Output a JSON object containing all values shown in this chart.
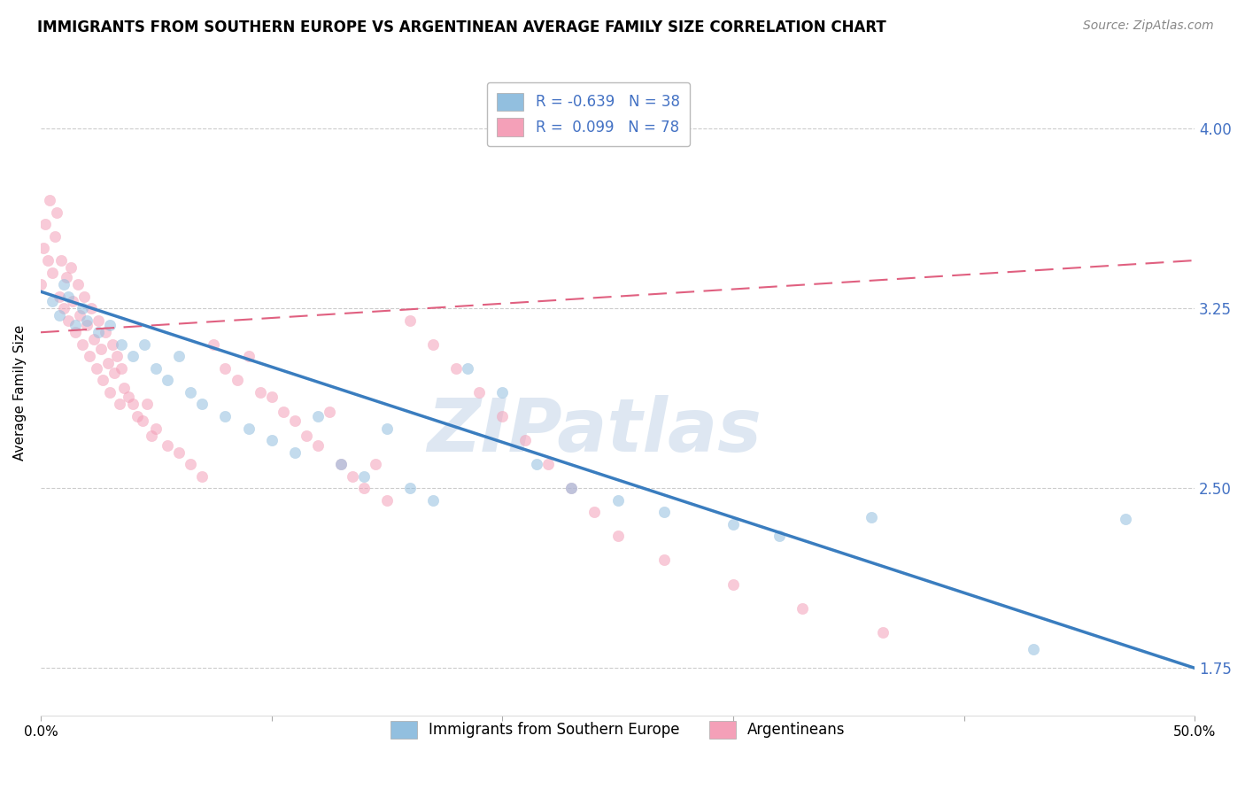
{
  "title": "IMMIGRANTS FROM SOUTHERN EUROPE VS ARGENTINEAN AVERAGE FAMILY SIZE CORRELATION CHART",
  "source": "Source: ZipAtlas.com",
  "ylabel": "Average Family Size",
  "xlim": [
    0.0,
    0.5
  ],
  "ylim": [
    1.55,
    4.25
  ],
  "yticks": [
    1.75,
    2.5,
    3.25,
    4.0
  ],
  "xticks": [
    0.0,
    0.1,
    0.2,
    0.3,
    0.4,
    0.5
  ],
  "xtick_labels": [
    "0.0%",
    "",
    "",
    "",
    "",
    "50.0%"
  ],
  "legend_line1": "R = -0.639   N = 38",
  "legend_line2": "R =  0.099   N = 78",
  "legend_labels_bottom": [
    "Immigrants from Southern Europe",
    "Argentineans"
  ],
  "blue_scatter_x": [
    0.005,
    0.008,
    0.01,
    0.012,
    0.015,
    0.018,
    0.02,
    0.025,
    0.03,
    0.035,
    0.04,
    0.045,
    0.05,
    0.055,
    0.06,
    0.065,
    0.07,
    0.08,
    0.09,
    0.1,
    0.11,
    0.12,
    0.13,
    0.14,
    0.15,
    0.16,
    0.17,
    0.185,
    0.2,
    0.215,
    0.23,
    0.25,
    0.27,
    0.3,
    0.32,
    0.36,
    0.43,
    0.47
  ],
  "blue_scatter_y": [
    3.28,
    3.22,
    3.35,
    3.3,
    3.18,
    3.25,
    3.2,
    3.15,
    3.18,
    3.1,
    3.05,
    3.1,
    3.0,
    2.95,
    3.05,
    2.9,
    2.85,
    2.8,
    2.75,
    2.7,
    2.65,
    2.8,
    2.6,
    2.55,
    2.75,
    2.5,
    2.45,
    3.0,
    2.9,
    2.6,
    2.5,
    2.45,
    2.4,
    2.35,
    2.3,
    2.38,
    1.83,
    2.37
  ],
  "pink_scatter_x": [
    0.0,
    0.001,
    0.002,
    0.003,
    0.004,
    0.005,
    0.006,
    0.007,
    0.008,
    0.009,
    0.01,
    0.011,
    0.012,
    0.013,
    0.014,
    0.015,
    0.016,
    0.017,
    0.018,
    0.019,
    0.02,
    0.021,
    0.022,
    0.023,
    0.024,
    0.025,
    0.026,
    0.027,
    0.028,
    0.029,
    0.03,
    0.031,
    0.032,
    0.033,
    0.034,
    0.035,
    0.036,
    0.038,
    0.04,
    0.042,
    0.044,
    0.046,
    0.048,
    0.05,
    0.055,
    0.06,
    0.065,
    0.07,
    0.075,
    0.08,
    0.085,
    0.09,
    0.095,
    0.1,
    0.105,
    0.11,
    0.115,
    0.12,
    0.125,
    0.13,
    0.135,
    0.14,
    0.145,
    0.15,
    0.16,
    0.17,
    0.18,
    0.19,
    0.2,
    0.21,
    0.22,
    0.23,
    0.24,
    0.25,
    0.27,
    0.3,
    0.33,
    0.365
  ],
  "pink_scatter_y": [
    3.35,
    3.5,
    3.6,
    3.45,
    3.7,
    3.4,
    3.55,
    3.65,
    3.3,
    3.45,
    3.25,
    3.38,
    3.2,
    3.42,
    3.28,
    3.15,
    3.35,
    3.22,
    3.1,
    3.3,
    3.18,
    3.05,
    3.25,
    3.12,
    3.0,
    3.2,
    3.08,
    2.95,
    3.15,
    3.02,
    2.9,
    3.1,
    2.98,
    3.05,
    2.85,
    3.0,
    2.92,
    2.88,
    2.85,
    2.8,
    2.78,
    2.85,
    2.72,
    2.75,
    2.68,
    2.65,
    2.6,
    2.55,
    3.1,
    3.0,
    2.95,
    3.05,
    2.9,
    2.88,
    2.82,
    2.78,
    2.72,
    2.68,
    2.82,
    2.6,
    2.55,
    2.5,
    2.6,
    2.45,
    3.2,
    3.1,
    3.0,
    2.9,
    2.8,
    2.7,
    2.6,
    2.5,
    2.4,
    2.3,
    2.2,
    2.1,
    2.0,
    1.9
  ],
  "blue_line_x": [
    0.0,
    0.5
  ],
  "blue_line_y": [
    3.32,
    1.75
  ],
  "pink_line_x": [
    0.0,
    0.5
  ],
  "pink_line_y": [
    3.15,
    3.45
  ],
  "scatter_alpha": 0.55,
  "scatter_size": 80,
  "blue_color": "#92bfdf",
  "pink_color": "#f4a0b8",
  "blue_line_color": "#3a7dbf",
  "pink_line_color": "#e06080",
  "grid_color": "#cccccc",
  "background_color": "#ffffff",
  "title_fontsize": 12,
  "label_fontsize": 11,
  "tick_fontsize": 11,
  "source_fontsize": 10,
  "right_axis_color": "#4472c4",
  "watermark_color": "#c8d8ea",
  "watermark_text": "ZIPatlas"
}
